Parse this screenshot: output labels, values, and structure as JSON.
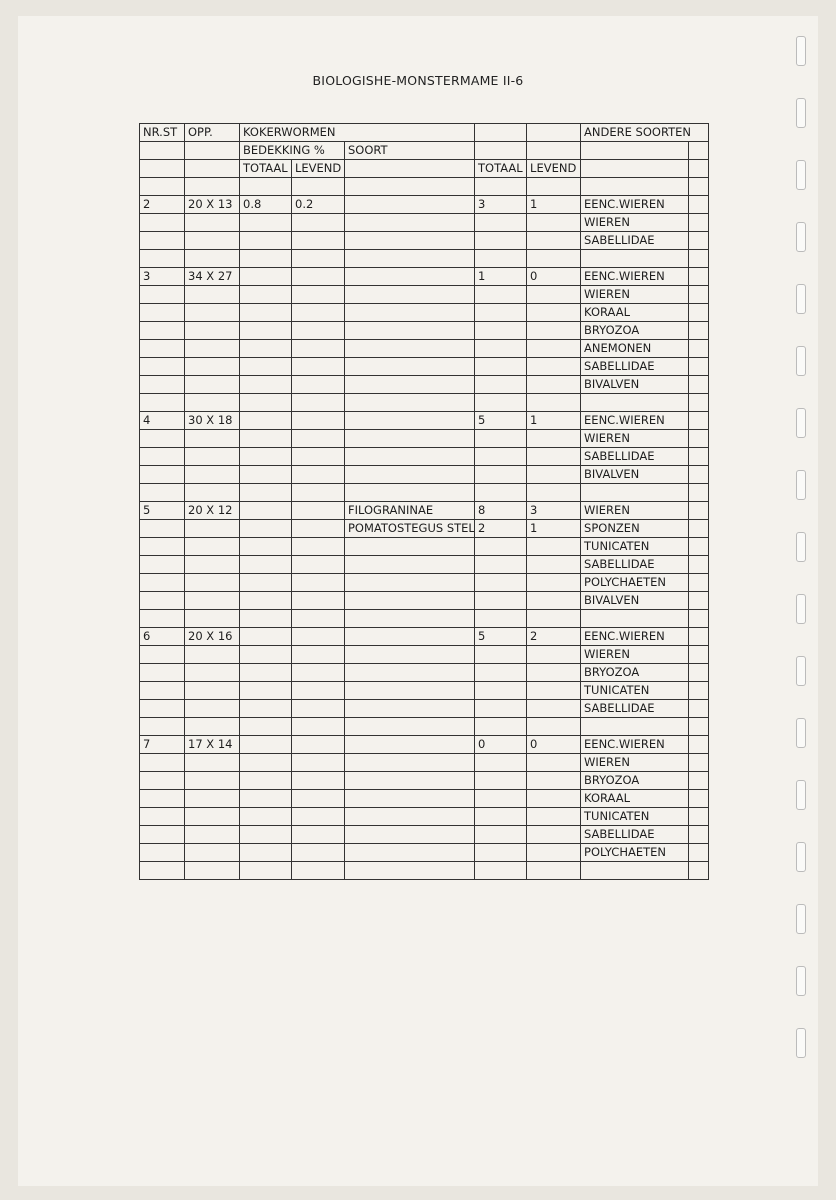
{
  "title": "BIOLOGISHE-MONSTERMAME II-6",
  "header": {
    "nr_st": "NR.ST",
    "opp": "OPP.",
    "kokerwormen": "KOKERWORMEN",
    "andere_soorten": "ANDERE SOORTEN",
    "bedekking": "BEDEKKING %",
    "soort": "SOORT",
    "totaal": "TOTAAL",
    "levend": "LEVEND",
    "totaal2": "TOTAAL",
    "levend2": "LEVEND"
  },
  "rows": [
    [
      "",
      "",
      "",
      "",
      "",
      "",
      "",
      ""
    ],
    [
      "2",
      "20 X 13",
      "0.8",
      "0.2",
      "",
      "3",
      "1",
      "EENC.WIEREN"
    ],
    [
      "",
      "",
      "",
      "",
      "",
      "",
      "",
      "WIEREN"
    ],
    [
      "",
      "",
      "",
      "",
      "",
      "",
      "",
      "SABELLIDAE"
    ],
    [
      "",
      "",
      "",
      "",
      "",
      "",
      "",
      ""
    ],
    [
      "3",
      "34 X 27",
      "",
      "",
      "",
      "1",
      "0",
      "EENC.WIEREN"
    ],
    [
      "",
      "",
      "",
      "",
      "",
      "",
      "",
      "WIEREN"
    ],
    [
      "",
      "",
      "",
      "",
      "",
      "",
      "",
      "KORAAL"
    ],
    [
      "",
      "",
      "",
      "",
      "",
      "",
      "",
      "BRYOZOA"
    ],
    [
      "",
      "",
      "",
      "",
      "",
      "",
      "",
      "ANEMONEN"
    ],
    [
      "",
      "",
      "",
      "",
      "",
      "",
      "",
      "SABELLIDAE"
    ],
    [
      "",
      "",
      "",
      "",
      "",
      "",
      "",
      "BIVALVEN"
    ],
    [
      "",
      "",
      "",
      "",
      "",
      "",
      "",
      ""
    ],
    [
      "4",
      "30 X 18",
      "",
      "",
      "",
      "5",
      "1",
      "EENC.WIEREN"
    ],
    [
      "",
      "",
      "",
      "",
      "",
      "",
      "",
      "WIEREN"
    ],
    [
      "",
      "",
      "",
      "",
      "",
      "",
      "",
      "SABELLIDAE"
    ],
    [
      "",
      "",
      "",
      "",
      "",
      "",
      "",
      "BIVALVEN"
    ],
    [
      "",
      "",
      "",
      "",
      "",
      "",
      "",
      ""
    ],
    [
      "5",
      "20 X 12",
      "",
      "",
      "FILOGRANINAE",
      "8",
      "3",
      "WIEREN"
    ],
    [
      "",
      "",
      "",
      "",
      "POMATOSTEGUS STEL",
      "2",
      "1",
      "SPONZEN"
    ],
    [
      "",
      "",
      "",
      "",
      "",
      "",
      "",
      "TUNICATEN"
    ],
    [
      "",
      "",
      "",
      "",
      "",
      "",
      "",
      "SABELLIDAE"
    ],
    [
      "",
      "",
      "",
      "",
      "",
      "",
      "",
      "POLYCHAETEN"
    ],
    [
      "",
      "",
      "",
      "",
      "",
      "",
      "",
      "BIVALVEN"
    ],
    [
      "",
      "",
      "",
      "",
      "",
      "",
      "",
      ""
    ],
    [
      "6",
      "20 X 16",
      "",
      "",
      "",
      "5",
      "2",
      "EENC.WIEREN"
    ],
    [
      "",
      "",
      "",
      "",
      "",
      "",
      "",
      "WIEREN"
    ],
    [
      "",
      "",
      "",
      "",
      "",
      "",
      "",
      "BRYOZOA"
    ],
    [
      "",
      "",
      "",
      "",
      "",
      "",
      "",
      "TUNICATEN"
    ],
    [
      "",
      "",
      "",
      "",
      "",
      "",
      "",
      "SABELLIDAE"
    ],
    [
      "",
      "",
      "",
      "",
      "",
      "",
      "",
      ""
    ],
    [
      "7",
      "17 X 14",
      "",
      "",
      "",
      "0",
      "0",
      "EENC.WIEREN"
    ],
    [
      "",
      "",
      "",
      "",
      "",
      "",
      "",
      "WIEREN"
    ],
    [
      "",
      "",
      "",
      "",
      "",
      "",
      "",
      "BRYOZOA"
    ],
    [
      "",
      "",
      "",
      "",
      "",
      "",
      "",
      "KORAAL"
    ],
    [
      "",
      "",
      "",
      "",
      "",
      "",
      "",
      "TUNICATEN"
    ],
    [
      "",
      "",
      "",
      "",
      "",
      "",
      "",
      "SABELLIDAE"
    ],
    [
      "",
      "",
      "",
      "",
      "",
      "",
      "",
      "POLYCHAETEN"
    ],
    [
      "",
      "",
      "",
      "",
      "",
      "",
      "",
      ""
    ]
  ]
}
